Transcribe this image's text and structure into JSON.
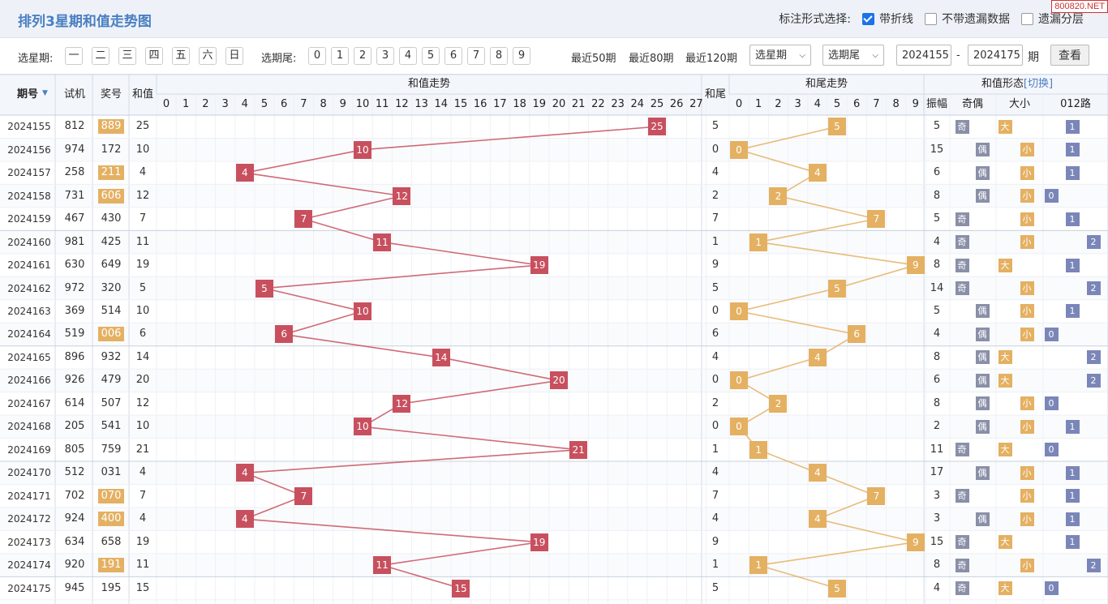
{
  "title": "排列3星期和值走势图",
  "options": {
    "label": "标注形式选择:",
    "items": [
      {
        "label": "带折线",
        "checked": true
      },
      {
        "label": "不带遗漏数据",
        "checked": false
      },
      {
        "label": "遗漏分层",
        "checked": false
      }
    ]
  },
  "watermark": "800820.NET",
  "toolbar": {
    "weekday_label": "选星期:",
    "weekdays": [
      "一",
      "二",
      "三",
      "四",
      "五",
      "六",
      "日"
    ],
    "tail_label": "选期尾:",
    "tails": [
      "0",
      "1",
      "2",
      "3",
      "4",
      "5",
      "6",
      "7",
      "8",
      "9"
    ],
    "recent": [
      "最近50期",
      "最近80期",
      "最近120期"
    ],
    "select_weekday": "选星期",
    "select_tail": "选期尾",
    "from": "2024155",
    "dash": "-",
    "to": "2024175",
    "period_unit": "期",
    "query": "查看"
  },
  "headers": {
    "issue": "期号",
    "trial": "试机",
    "prize": "奖号",
    "sum": "和值",
    "sum_trend": "和值走势",
    "tail": "和尾",
    "tail_trend": "和尾走势",
    "shape": "和值形态",
    "switch": "[切换]",
    "amp": "振幅",
    "oe": "奇偶",
    "bs": "大小",
    "road": "012路"
  },
  "sum_cols": [
    "0",
    "1",
    "2",
    "3",
    "4",
    "5",
    "6",
    "7",
    "8",
    "9",
    "10",
    "11",
    "12",
    "13",
    "14",
    "15",
    "16",
    "17",
    "18",
    "19",
    "20",
    "21",
    "22",
    "23",
    "24",
    "25",
    "26",
    "27"
  ],
  "tail_cols": [
    "0",
    "1",
    "2",
    "3",
    "4",
    "5",
    "6",
    "7",
    "8",
    "9"
  ],
  "rows": [
    {
      "issue": "2024155",
      "trial": "812",
      "prize": "889",
      "group": true,
      "sum": 25,
      "tail": 5,
      "amp": "5",
      "oe": "奇",
      "oe_idx": 0,
      "bs": "大",
      "bs_idx": 0,
      "road": "1",
      "road_idx": 1
    },
    {
      "issue": "2024156",
      "trial": "974",
      "prize": "172",
      "group": false,
      "sum": 10,
      "tail": 0,
      "amp": "15",
      "oe": "偶",
      "oe_idx": 1,
      "bs": "小",
      "bs_idx": 1,
      "road": "1",
      "road_idx": 1
    },
    {
      "issue": "2024157",
      "trial": "258",
      "prize": "211",
      "group": true,
      "sum": 4,
      "tail": 4,
      "amp": "6",
      "oe": "偶",
      "oe_idx": 1,
      "bs": "小",
      "bs_idx": 1,
      "road": "1",
      "road_idx": 1
    },
    {
      "issue": "2024158",
      "trial": "731",
      "prize": "606",
      "group": true,
      "sum": 12,
      "tail": 2,
      "amp": "8",
      "oe": "偶",
      "oe_idx": 1,
      "bs": "小",
      "bs_idx": 1,
      "road": "0",
      "road_idx": 0
    },
    {
      "issue": "2024159",
      "trial": "467",
      "prize": "430",
      "group": false,
      "sum": 7,
      "tail": 7,
      "amp": "5",
      "oe": "奇",
      "oe_idx": 0,
      "bs": "小",
      "bs_idx": 1,
      "road": "1",
      "road_idx": 1
    },
    {
      "issue": "2024160",
      "trial": "981",
      "prize": "425",
      "group": false,
      "sum": 11,
      "tail": 1,
      "amp": "4",
      "oe": "奇",
      "oe_idx": 0,
      "bs": "小",
      "bs_idx": 1,
      "road": "2",
      "road_idx": 2
    },
    {
      "issue": "2024161",
      "trial": "630",
      "prize": "649",
      "group": false,
      "sum": 19,
      "tail": 9,
      "amp": "8",
      "oe": "奇",
      "oe_idx": 0,
      "bs": "大",
      "bs_idx": 0,
      "road": "1",
      "road_idx": 1
    },
    {
      "issue": "2024162",
      "trial": "972",
      "prize": "320",
      "group": false,
      "sum": 5,
      "tail": 5,
      "amp": "14",
      "oe": "奇",
      "oe_idx": 0,
      "bs": "小",
      "bs_idx": 1,
      "road": "2",
      "road_idx": 2
    },
    {
      "issue": "2024163",
      "trial": "369",
      "prize": "514",
      "group": false,
      "sum": 10,
      "tail": 0,
      "amp": "5",
      "oe": "偶",
      "oe_idx": 1,
      "bs": "小",
      "bs_idx": 1,
      "road": "1",
      "road_idx": 1
    },
    {
      "issue": "2024164",
      "trial": "519",
      "prize": "006",
      "group": true,
      "sum": 6,
      "tail": 6,
      "amp": "4",
      "oe": "偶",
      "oe_idx": 1,
      "bs": "小",
      "bs_idx": 1,
      "road": "0",
      "road_idx": 0
    },
    {
      "issue": "2024165",
      "trial": "896",
      "prize": "932",
      "group": false,
      "sum": 14,
      "tail": 4,
      "amp": "8",
      "oe": "偶",
      "oe_idx": 1,
      "bs": "大",
      "bs_idx": 0,
      "road": "2",
      "road_idx": 2
    },
    {
      "issue": "2024166",
      "trial": "926",
      "prize": "479",
      "group": false,
      "sum": 20,
      "tail": 0,
      "amp": "6",
      "oe": "偶",
      "oe_idx": 1,
      "bs": "大",
      "bs_idx": 0,
      "road": "2",
      "road_idx": 2
    },
    {
      "issue": "2024167",
      "trial": "614",
      "prize": "507",
      "group": false,
      "sum": 12,
      "tail": 2,
      "amp": "8",
      "oe": "偶",
      "oe_idx": 1,
      "bs": "小",
      "bs_idx": 1,
      "road": "0",
      "road_idx": 0
    },
    {
      "issue": "2024168",
      "trial": "205",
      "prize": "541",
      "group": false,
      "sum": 10,
      "tail": 0,
      "amp": "2",
      "oe": "偶",
      "oe_idx": 1,
      "bs": "小",
      "bs_idx": 1,
      "road": "1",
      "road_idx": 1
    },
    {
      "issue": "2024169",
      "trial": "805",
      "prize": "759",
      "group": false,
      "sum": 21,
      "tail": 1,
      "amp": "11",
      "oe": "奇",
      "oe_idx": 0,
      "bs": "大",
      "bs_idx": 0,
      "road": "0",
      "road_idx": 0
    },
    {
      "issue": "2024170",
      "trial": "512",
      "prize": "031",
      "group": false,
      "sum": 4,
      "tail": 4,
      "amp": "17",
      "oe": "偶",
      "oe_idx": 1,
      "bs": "小",
      "bs_idx": 1,
      "road": "1",
      "road_idx": 1
    },
    {
      "issue": "2024171",
      "trial": "702",
      "prize": "070",
      "group": true,
      "sum": 7,
      "tail": 7,
      "amp": "3",
      "oe": "奇",
      "oe_idx": 0,
      "bs": "小",
      "bs_idx": 1,
      "road": "1",
      "road_idx": 1
    },
    {
      "issue": "2024172",
      "trial": "924",
      "prize": "400",
      "group": true,
      "sum": 4,
      "tail": 4,
      "amp": "3",
      "oe": "偶",
      "oe_idx": 1,
      "bs": "小",
      "bs_idx": 1,
      "road": "1",
      "road_idx": 1
    },
    {
      "issue": "2024173",
      "trial": "634",
      "prize": "658",
      "group": false,
      "sum": 19,
      "tail": 9,
      "amp": "15",
      "oe": "奇",
      "oe_idx": 0,
      "bs": "大",
      "bs_idx": 0,
      "road": "1",
      "road_idx": 1
    },
    {
      "issue": "2024174",
      "trial": "920",
      "prize": "191",
      "group": true,
      "sum": 11,
      "tail": 1,
      "amp": "8",
      "oe": "奇",
      "oe_idx": 0,
      "bs": "小",
      "bs_idx": 1,
      "road": "2",
      "road_idx": 2
    },
    {
      "issue": "2024175",
      "trial": "945",
      "prize": "195",
      "group": false,
      "sum": 15,
      "tail": 5,
      "amp": "4",
      "oe": "奇",
      "oe_idx": 0,
      "bs": "大",
      "bs_idx": 0,
      "road": "0",
      "road_idx": 0
    }
  ],
  "colors": {
    "red": "#c8505e",
    "yellow": "#e4b062",
    "oe": "#8a8fa8",
    "road": "#7b86b8",
    "title": "#4a7fc1"
  }
}
